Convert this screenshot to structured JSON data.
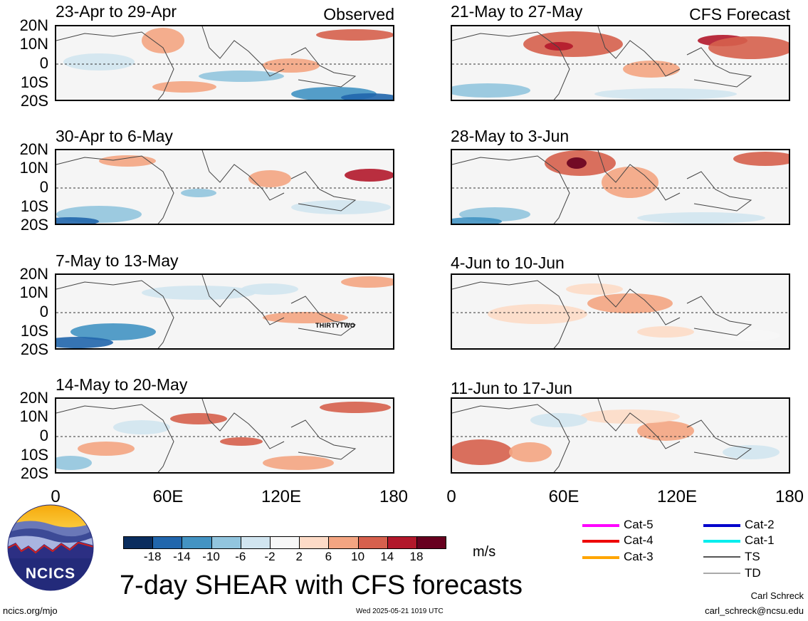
{
  "left_column_label": "Observed",
  "right_column_label": "CFS Forecast",
  "panels": [
    {
      "title": "23-Apr to 29-Apr"
    },
    {
      "title": "30-Apr to 6-May"
    },
    {
      "title": "7-May to 13-May"
    },
    {
      "title": "14-May to 20-May"
    },
    {
      "title": "21-May to 27-May"
    },
    {
      "title": "28-May to 3-Jun"
    },
    {
      "title": "4-Jun to 10-Jun"
    },
    {
      "title": "11-Jun to 17-Jun"
    }
  ],
  "storm_label": "THIRTYTWO",
  "lat_labels": [
    "20N",
    "10N",
    "0",
    "10S",
    "20S"
  ],
  "lon_labels": [
    "0",
    "60E",
    "120E",
    "180"
  ],
  "colorbar": {
    "ticks": [
      "-18",
      "-14",
      "-10",
      "-6",
      "-2",
      "2",
      "6",
      "10",
      "14",
      "18"
    ],
    "colors": [
      "#0a2d5e",
      "#2166ac",
      "#4393c3",
      "#92c5de",
      "#d1e5f0",
      "#f7f7f7",
      "#fddbc7",
      "#f4a582",
      "#d6604d",
      "#b2182b",
      "#67001f"
    ],
    "unit": "m/s"
  },
  "legend": [
    {
      "label": "Cat-5",
      "color": "#ff00ff",
      "thick": true
    },
    {
      "label": "Cat-4",
      "color": "#ee0000",
      "thick": true
    },
    {
      "label": "Cat-3",
      "color": "#ffa500",
      "thick": true
    },
    {
      "label": "Cat-2",
      "color": "#0000cc",
      "thick": true
    },
    {
      "label": "Cat-1",
      "color": "#00eeee",
      "thick": true
    },
    {
      "label": "TS",
      "color": "#555555",
      "thick": false
    },
    {
      "label": "TD",
      "color": "#aaaaaa",
      "thick": false
    }
  ],
  "logo_text": "NCICS",
  "main_title": "7-day SHEAR with CFS forecasts",
  "footer": {
    "url": "ncics.org/mjo",
    "timestamp": "Wed 2025-05-21 1019 UTC",
    "author": "Carl Schreck",
    "email": "carl_schreck@ncsu.edu"
  }
}
